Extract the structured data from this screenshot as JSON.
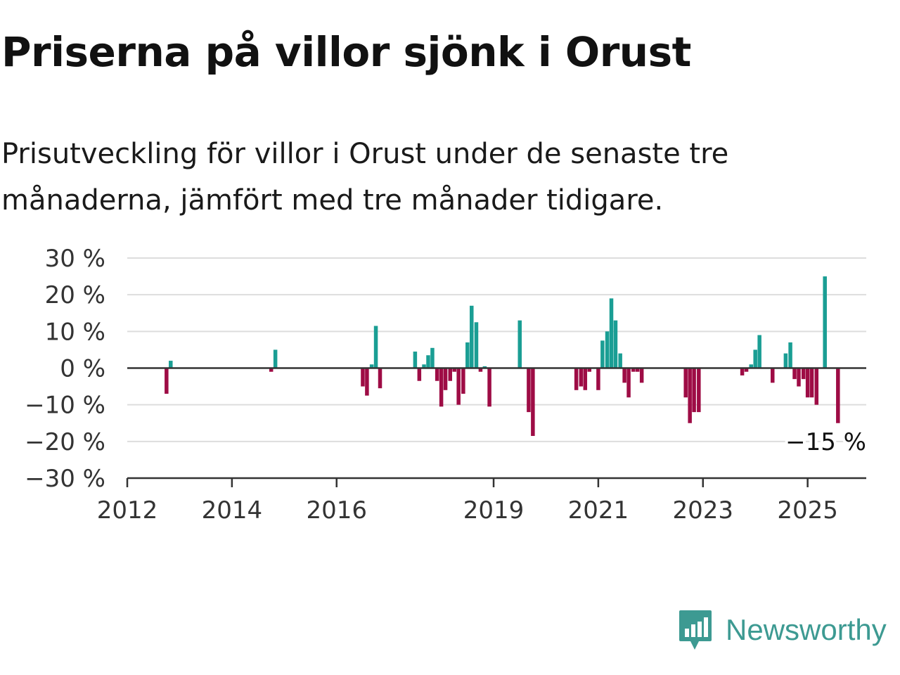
{
  "title": "Priserna på villor sjönk i Orust",
  "subtitle": "Prisutveckling för villor i Orust under de senaste tre månaderna, jämfört med tre månader tidigare.",
  "brand": {
    "name": "Newsworthy",
    "icon": "chat-bar-chart-icon"
  },
  "colors": {
    "positive": "#1a9e94",
    "negative": "#9e0c45",
    "grid": "#dddddd",
    "zero_line": "#333333"
  },
  "chart_data": {
    "type": "bar",
    "title": "Priserna på villor sjönk i Orust",
    "subtitle": "Prisutveckling för villor i Orust under de senaste tre månaderna, jämfört med tre månader tidigare.",
    "xlabel": "",
    "ylabel": "",
    "ylim": [
      -30,
      30
    ],
    "yticks": [
      30,
      20,
      10,
      0,
      -10,
      -20,
      -30
    ],
    "ytick_labels": [
      "30 %",
      "20 %",
      "10 %",
      "0 %",
      "−10 %",
      "−20 %",
      "−30 %"
    ],
    "xticks": [
      "2012",
      "2014",
      "2016",
      "2019",
      "2021",
      "2023",
      "2025"
    ],
    "grid": true,
    "end_label": "−15 %",
    "end_value": -15,
    "x_unit": "year",
    "values": [
      {
        "x": 2012.75,
        "y": -7
      },
      {
        "x": 2012.83,
        "y": 2
      },
      {
        "x": 2014.75,
        "y": -1
      },
      {
        "x": 2014.83,
        "y": 5
      },
      {
        "x": 2016.5,
        "y": -5
      },
      {
        "x": 2016.58,
        "y": -7.5
      },
      {
        "x": 2016.67,
        "y": 1
      },
      {
        "x": 2016.75,
        "y": 11.5
      },
      {
        "x": 2016.83,
        "y": -5.5
      },
      {
        "x": 2017.5,
        "y": 4.5
      },
      {
        "x": 2017.58,
        "y": -3.5
      },
      {
        "x": 2017.67,
        "y": 1
      },
      {
        "x": 2017.75,
        "y": 3.5
      },
      {
        "x": 2017.83,
        "y": 5.5
      },
      {
        "x": 2017.92,
        "y": -3.5
      },
      {
        "x": 2018.0,
        "y": -10.5
      },
      {
        "x": 2018.08,
        "y": -6
      },
      {
        "x": 2018.17,
        "y": -3.5
      },
      {
        "x": 2018.25,
        "y": -1
      },
      {
        "x": 2018.33,
        "y": -10
      },
      {
        "x": 2018.42,
        "y": -7
      },
      {
        "x": 2018.5,
        "y": 7
      },
      {
        "x": 2018.58,
        "y": 17
      },
      {
        "x": 2018.67,
        "y": 12.5
      },
      {
        "x": 2018.75,
        "y": -1
      },
      {
        "x": 2018.83,
        "y": 0.5
      },
      {
        "x": 2018.92,
        "y": -10.5
      },
      {
        "x": 2019.5,
        "y": 13
      },
      {
        "x": 2019.67,
        "y": -12
      },
      {
        "x": 2019.75,
        "y": -18.5
      },
      {
        "x": 2020.58,
        "y": -6
      },
      {
        "x": 2020.67,
        "y": -5
      },
      {
        "x": 2020.75,
        "y": -6
      },
      {
        "x": 2020.83,
        "y": -1
      },
      {
        "x": 2021.0,
        "y": -6
      },
      {
        "x": 2021.08,
        "y": 7.5
      },
      {
        "x": 2021.17,
        "y": 10
      },
      {
        "x": 2021.25,
        "y": 19
      },
      {
        "x": 2021.33,
        "y": 13
      },
      {
        "x": 2021.42,
        "y": 4
      },
      {
        "x": 2021.5,
        "y": -4
      },
      {
        "x": 2021.58,
        "y": -8
      },
      {
        "x": 2021.67,
        "y": -1
      },
      {
        "x": 2021.75,
        "y": -1
      },
      {
        "x": 2021.83,
        "y": -4
      },
      {
        "x": 2022.67,
        "y": -8
      },
      {
        "x": 2022.75,
        "y": -15
      },
      {
        "x": 2022.83,
        "y": -12
      },
      {
        "x": 2022.92,
        "y": -12
      },
      {
        "x": 2023.75,
        "y": -2
      },
      {
        "x": 2023.83,
        "y": -1
      },
      {
        "x": 2023.92,
        "y": 1
      },
      {
        "x": 2024.0,
        "y": 5
      },
      {
        "x": 2024.08,
        "y": 9
      },
      {
        "x": 2024.33,
        "y": -4
      },
      {
        "x": 2024.58,
        "y": 4
      },
      {
        "x": 2024.67,
        "y": 7
      },
      {
        "x": 2024.75,
        "y": -3
      },
      {
        "x": 2024.83,
        "y": -5
      },
      {
        "x": 2024.92,
        "y": -3
      },
      {
        "x": 2025.0,
        "y": -8
      },
      {
        "x": 2025.08,
        "y": -8
      },
      {
        "x": 2025.17,
        "y": -10
      },
      {
        "x": 2025.33,
        "y": 25
      },
      {
        "x": 2025.58,
        "y": -15
      }
    ]
  }
}
